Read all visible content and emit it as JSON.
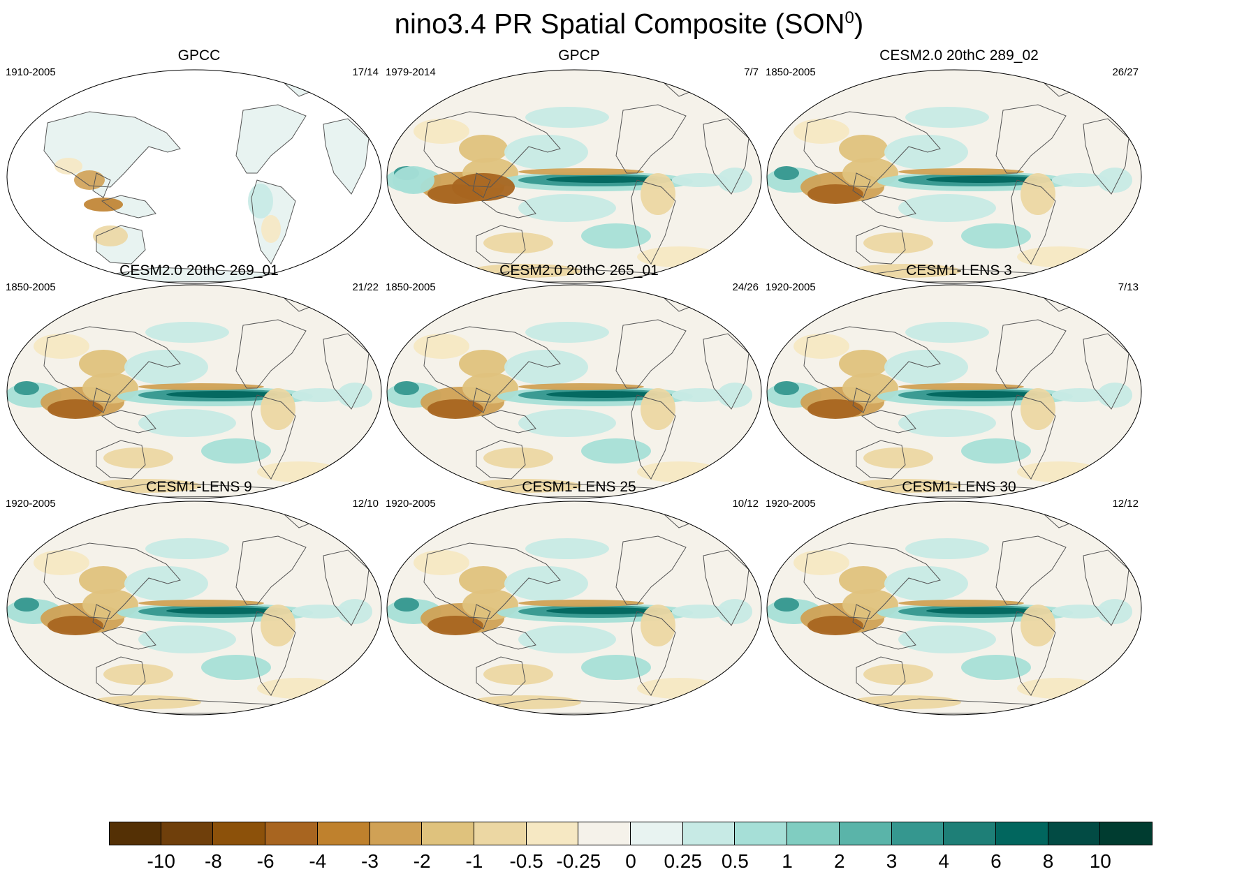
{
  "title": "nino3.4 PR Spatial Composite (SON",
  "title_sup": "0",
  "title_close": ")",
  "panels": [
    {
      "title": "GPCC",
      "years": "1910-2005",
      "count": "17/14",
      "type": "obs_land"
    },
    {
      "title": "GPCP",
      "years": "1979-2014",
      "count": "7/7",
      "type": "obs"
    },
    {
      "title": "CESM2.0 20thC 289_02",
      "years": "1850-2005",
      "count": "26/27",
      "type": "model"
    },
    {
      "title": "CESM2.0 20thC 269_01",
      "years": "1850-2005",
      "count": "21/22",
      "type": "model"
    },
    {
      "title": "CESM2.0 20thC 265_01",
      "years": "1850-2005",
      "count": "24/26",
      "type": "model"
    },
    {
      "title": "CESM1-LENS 3",
      "years": "1920-2005",
      "count": "7/13",
      "type": "model"
    },
    {
      "title": "CESM1-LENS 9",
      "years": "1920-2005",
      "count": "12/10",
      "type": "model"
    },
    {
      "title": "CESM1-LENS 25",
      "years": "1920-2005",
      "count": "10/12",
      "type": "model"
    },
    {
      "title": "CESM1-LENS 30",
      "years": "1920-2005",
      "count": "12/12",
      "type": "model"
    }
  ],
  "colorbar": {
    "colors": [
      "#543005",
      "#6f3f0b",
      "#8c510a",
      "#a86520",
      "#bf812d",
      "#d0a155",
      "#dfc27d",
      "#ecd7a3",
      "#f6e8c3",
      "#f5f2ea",
      "#e8f3f1",
      "#c7eae5",
      "#a6dfd7",
      "#80cdc1",
      "#5ab4a9",
      "#35978f",
      "#1e7f77",
      "#01665e",
      "#024b44",
      "#003c30"
    ],
    "labels": [
      "-10",
      "-8",
      "-6",
      "-4",
      "-3",
      "-2",
      "-1",
      "-0.5",
      "-0.25",
      "0",
      "0.25",
      "0.5",
      "1",
      "2",
      "3",
      "4",
      "6",
      "8",
      "10"
    ]
  }
}
